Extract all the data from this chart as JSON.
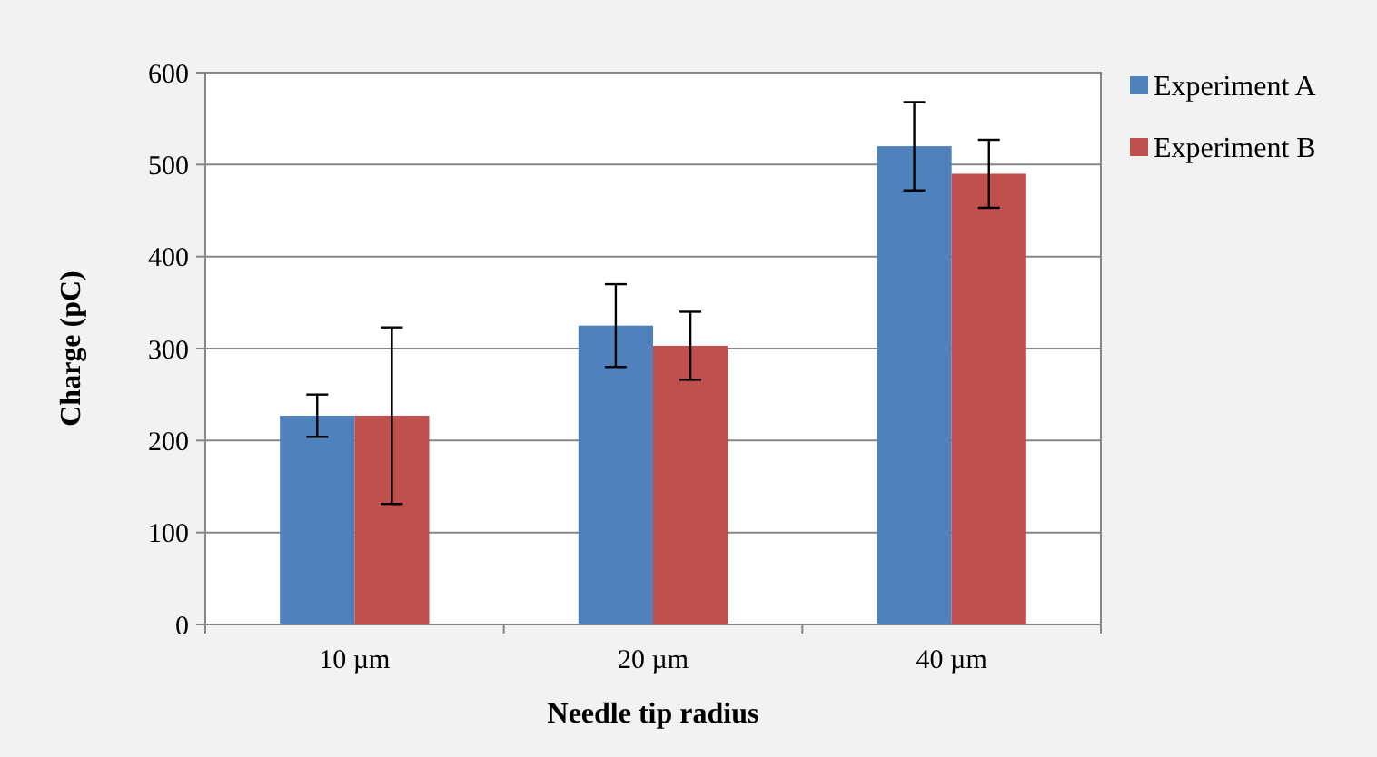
{
  "chart_data": {
    "type": "bar",
    "xlabel": "Needle tip radius",
    "ylabel": "Charge (pC)",
    "categories": [
      "10 µm",
      "20 µm",
      "40 µm"
    ],
    "series": [
      {
        "name": "Experiment  A",
        "color": "#4f81bd",
        "values": [
          227,
          325,
          520
        ],
        "errors": [
          23,
          45,
          48
        ]
      },
      {
        "name": "Experiment  B",
        "color": "#c0504d",
        "values": [
          227,
          303,
          490
        ],
        "errors": [
          96,
          37,
          37
        ]
      }
    ],
    "ylim": [
      0,
      600
    ],
    "yticks": [
      0,
      100,
      200,
      300,
      400,
      500,
      600
    ],
    "grid": "y",
    "legend": "top right"
  }
}
